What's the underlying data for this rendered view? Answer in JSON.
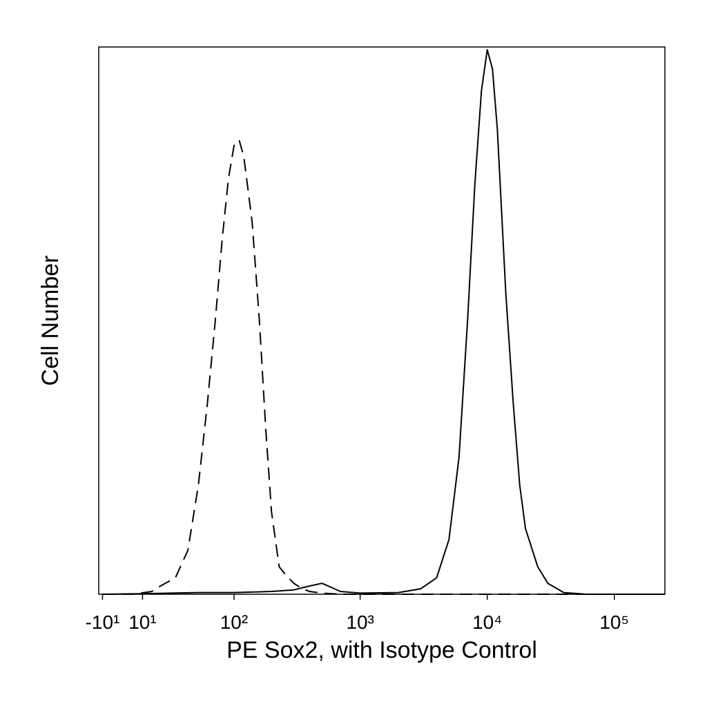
{
  "chart_data": {
    "type": "line",
    "xlabel": "PE Sox2, with Isotype Control",
    "ylabel": "Cell Number",
    "xscale": "biexponential",
    "xlim": [
      -12,
      250000
    ],
    "ylim": [
      0,
      100
    ],
    "xticks": [
      {
        "value": -10,
        "label": "-10¹"
      },
      {
        "value": 10,
        "label": "10¹"
      },
      {
        "value": 100,
        "label": "10²"
      },
      {
        "value": 1000,
        "label": "10³"
      },
      {
        "value": 10000,
        "label": "10⁴"
      },
      {
        "value": 100000,
        "label": "10⁵"
      }
    ],
    "series": [
      {
        "color": "#000000",
        "line_style": "solid",
        "x": [
          -10,
          10,
          50,
          100,
          200,
          300,
          400,
          500,
          600,
          700,
          1000,
          2000,
          3000,
          4000,
          5000,
          6000,
          7000,
          8000,
          9000,
          10000,
          11000,
          12000,
          14000,
          16000,
          18000,
          20000,
          25000,
          30000,
          40000,
          60000,
          250000
        ],
        "values": [
          0,
          0.1,
          0.3,
          0.3,
          0.5,
          0.8,
          1.5,
          2,
          1.2,
          0.5,
          0.2,
          0.3,
          1,
          3,
          10,
          25,
          50,
          75,
          92,
          99.5,
          96,
          85,
          55,
          35,
          20,
          12,
          5,
          2,
          0.3,
          0,
          0
        ]
      },
      {
        "color": "#000000",
        "line_style": "dashed",
        "x": [
          -10,
          5,
          15,
          20,
          30,
          40,
          50,
          60,
          70,
          80,
          90,
          100,
          110,
          120,
          140,
          160,
          180,
          200,
          230,
          260,
          300,
          350,
          400,
          500,
          700,
          250000
        ],
        "values": [
          0,
          0,
          0.5,
          1.5,
          3,
          8,
          20,
          35,
          50,
          65,
          76,
          82,
          83,
          80,
          68,
          50,
          30,
          15,
          5,
          3.5,
          2,
          1,
          0.5,
          0.2,
          0,
          0
        ]
      }
    ]
  }
}
